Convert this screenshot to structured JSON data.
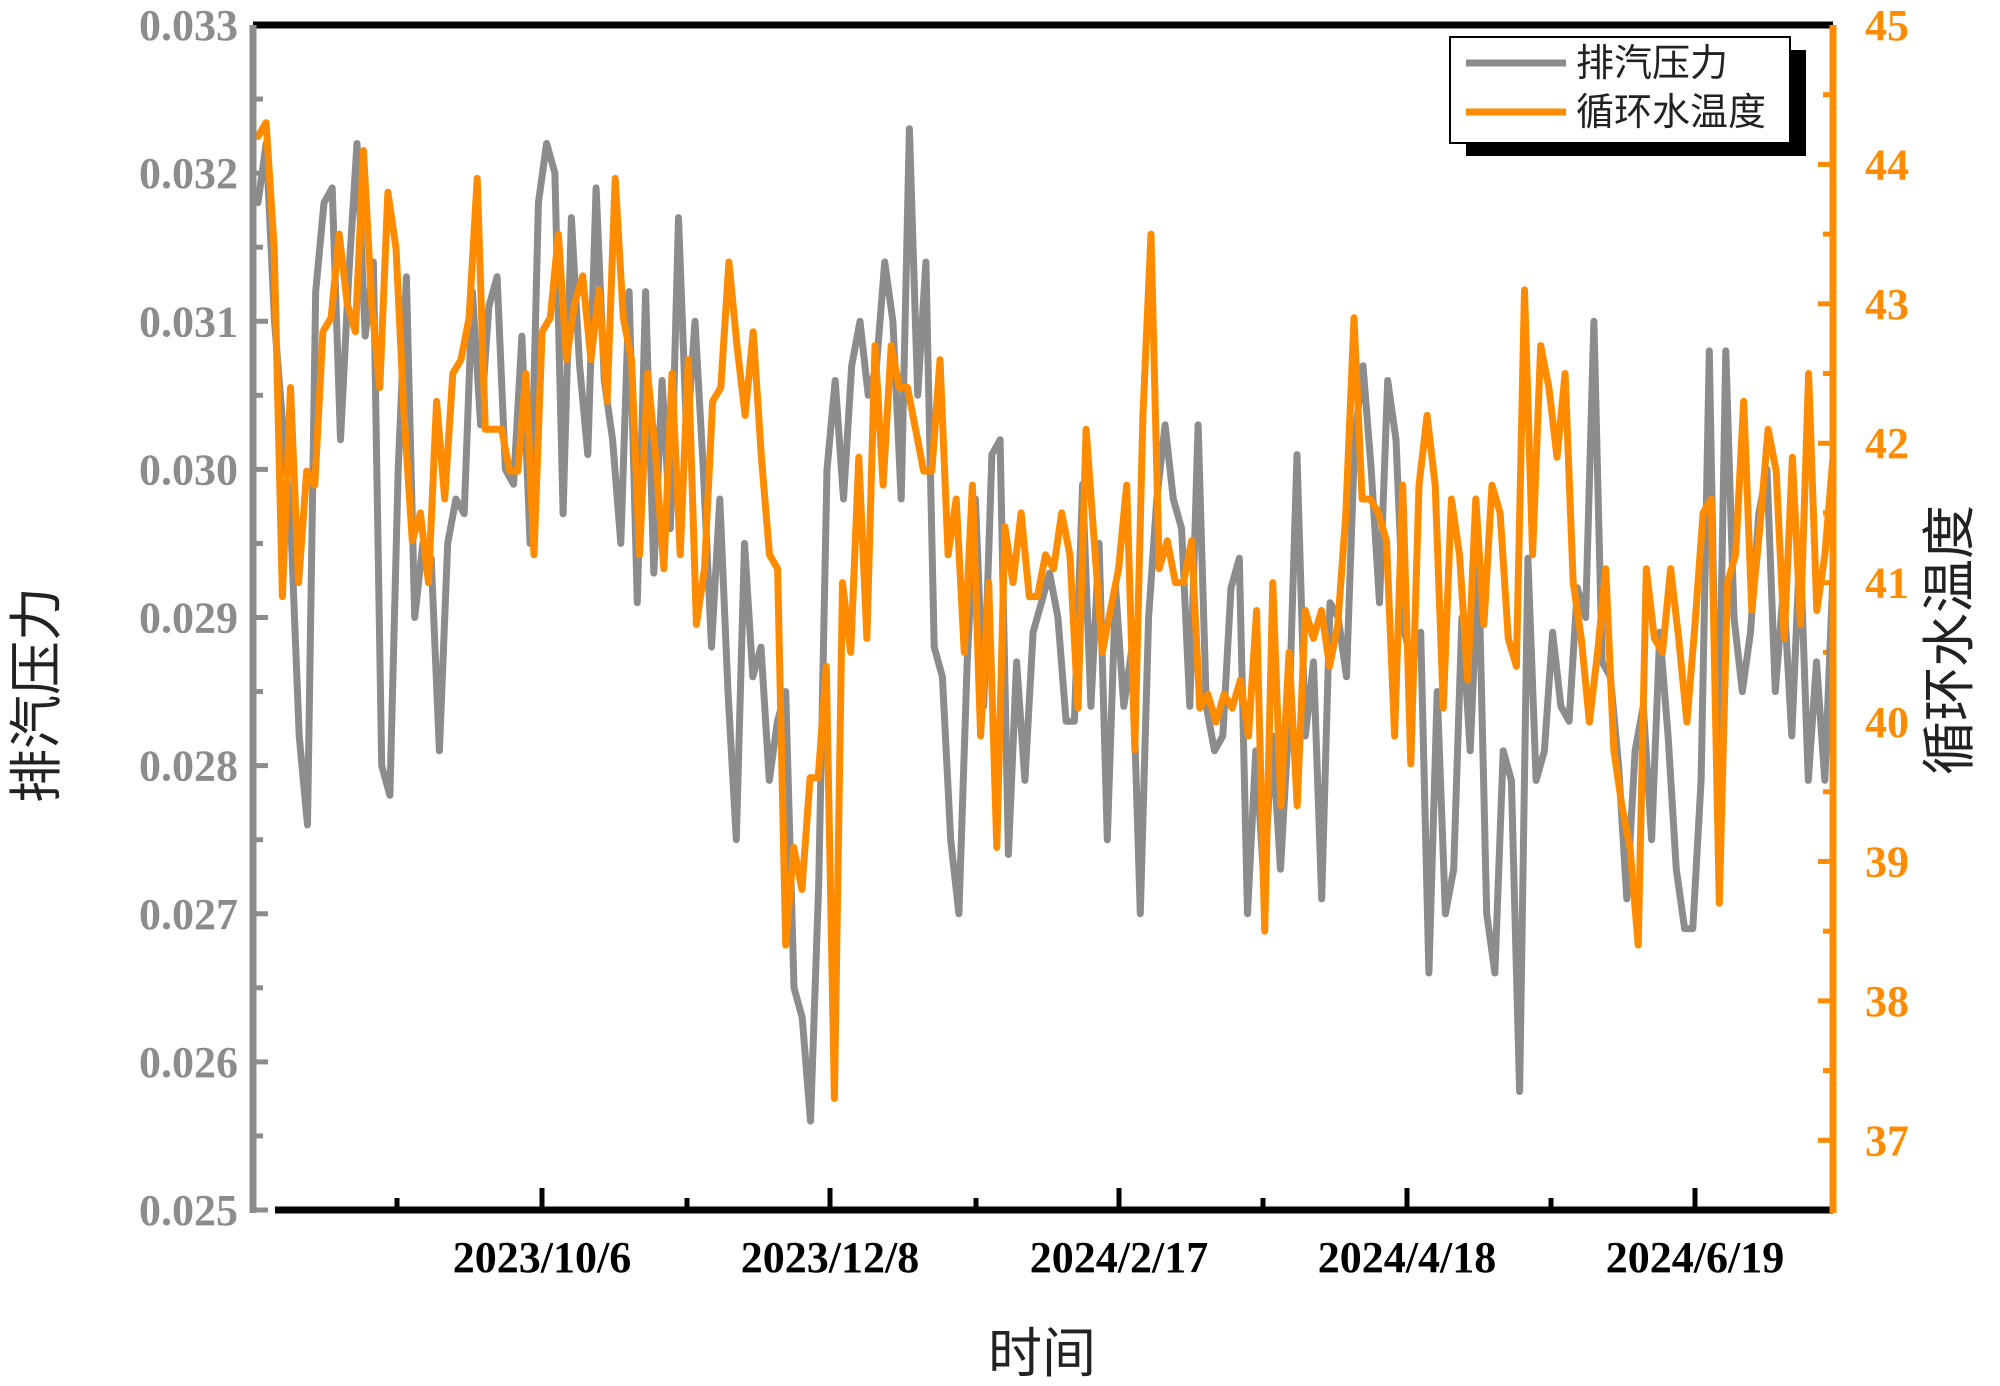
{
  "colors": {
    "pressure": "#8c8c8c",
    "temperature": "#ff8c00",
    "frame": "#000000",
    "background": "#ffffff"
  },
  "chart_data": {
    "type": "line",
    "title": "",
    "xlabel": "时间",
    "ylabel_left": "排汽压力",
    "ylabel_right": "循环水温度",
    "x_tick_labels": [
      "2023/10/6",
      "2023/12/8",
      "2024/2/17",
      "2024/4/18",
      "2024/6/19"
    ],
    "y_left_lim": [
      0.025,
      0.033
    ],
    "y_left_ticks": [
      "0.025",
      "0.026",
      "0.027",
      "0.028",
      "0.029",
      "0.030",
      "0.031",
      "0.032",
      "0.033"
    ],
    "y_right_lim": [
      36.5,
      45
    ],
    "y_right_ticks": [
      "37",
      "38",
      "39",
      "40",
      "41",
      "42",
      "43",
      "44",
      "45"
    ],
    "grid": false,
    "legend_position": "top-right",
    "series": [
      {
        "name": "排汽压力",
        "axis": "left",
        "values": [
          0.0318,
          0.0322,
          0.031,
          0.0303,
          0.0296,
          0.0282,
          0.0276,
          0.0312,
          0.0318,
          0.0319,
          0.0302,
          0.0313,
          0.0322,
          0.0309,
          0.0314,
          0.028,
          0.0278,
          0.03,
          0.0313,
          0.029,
          0.0295,
          0.0294,
          0.0281,
          0.0295,
          0.0298,
          0.0297,
          0.0312,
          0.0303,
          0.0311,
          0.0313,
          0.03,
          0.0299,
          0.0309,
          0.0295,
          0.0318,
          0.0322,
          0.032,
          0.0297,
          0.0317,
          0.0307,
          0.0301,
          0.0319,
          0.0306,
          0.0302,
          0.0295,
          0.0312,
          0.0291,
          0.0312,
          0.0293,
          0.0306,
          0.0296,
          0.0317,
          0.0302,
          0.031,
          0.03,
          0.0288,
          0.0298,
          0.0285,
          0.0275,
          0.0295,
          0.0286,
          0.0288,
          0.0279,
          0.0283,
          0.0285,
          0.0265,
          0.0263,
          0.0256,
          0.0272,
          0.03,
          0.0306,
          0.0298,
          0.0307,
          0.031,
          0.0305,
          0.0307,
          0.0314,
          0.031,
          0.0298,
          0.0323,
          0.0305,
          0.0314,
          0.0288,
          0.0286,
          0.0275,
          0.027,
          0.0287,
          0.0298,
          0.0284,
          0.0301,
          0.0302,
          0.0274,
          0.0287,
          0.0279,
          0.0289,
          0.0291,
          0.0293,
          0.029,
          0.0283,
          0.0283,
          0.0299,
          0.0284,
          0.0295,
          0.0275,
          0.0292,
          0.0284,
          0.0288,
          0.027,
          0.029,
          0.0298,
          0.0303,
          0.0298,
          0.0296,
          0.0284,
          0.0303,
          0.0284,
          0.0281,
          0.0282,
          0.0292,
          0.0294,
          0.027,
          0.0281,
          0.0272,
          0.0282,
          0.0273,
          0.0283,
          0.0301,
          0.0282,
          0.0287,
          0.0271,
          0.0291,
          0.029,
          0.0286,
          0.0302,
          0.0307,
          0.03,
          0.0291,
          0.0306,
          0.0302,
          0.0289,
          0.0287,
          0.0289,
          0.0266,
          0.0285,
          0.027,
          0.0273,
          0.029,
          0.0281,
          0.0294,
          0.027,
          0.0266,
          0.0281,
          0.0279,
          0.0258,
          0.0294,
          0.0279,
          0.0281,
          0.0289,
          0.0284,
          0.0283,
          0.0292,
          0.029,
          0.031,
          0.0287,
          0.0286,
          0.028,
          0.0271,
          0.0281,
          0.0284,
          0.0275,
          0.0289,
          0.0282,
          0.0273,
          0.0269,
          0.0269,
          0.0279,
          0.0308,
          0.0277,
          0.0308,
          0.029,
          0.0285,
          0.0289,
          0.0297,
          0.03,
          0.0285,
          0.0292,
          0.0282,
          0.0295,
          0.0279,
          0.0287,
          0.0279,
          0.0293
        ]
      },
      {
        "name": "循环水温度",
        "axis": "right",
        "values": [
          44.2,
          44.3,
          43.4,
          40.9,
          42.4,
          41.0,
          41.8,
          41.7,
          42.8,
          42.9,
          43.5,
          43.0,
          42.8,
          44.1,
          43.0,
          42.4,
          43.8,
          43.4,
          42.2,
          41.3,
          41.5,
          41.0,
          42.3,
          41.6,
          42.5,
          42.6,
          42.9,
          43.9,
          42.1,
          42.1,
          42.1,
          41.8,
          41.8,
          42.5,
          41.2,
          42.8,
          42.9,
          43.5,
          42.6,
          43.0,
          43.2,
          42.6,
          43.1,
          42.3,
          43.9,
          42.9,
          42.6,
          41.2,
          42.5,
          41.9,
          41.1,
          42.5,
          41.2,
          42.6,
          40.7,
          41.1,
          42.3,
          42.4,
          43.3,
          42.7,
          42.2,
          42.8,
          41.9,
          41.2,
          41.1,
          38.4,
          39.1,
          38.8,
          39.6,
          39.6,
          40.4,
          37.3,
          41.0,
          40.5,
          41.9,
          40.6,
          42.7,
          41.7,
          42.7,
          42.4,
          42.4,
          42.1,
          41.8,
          41.8,
          42.6,
          41.2,
          41.6,
          40.5,
          41.7,
          39.9,
          41.0,
          39.1,
          41.4,
          41.0,
          41.5,
          40.9,
          40.9,
          41.2,
          41.1,
          41.5,
          41.2,
          40.1,
          42.1,
          41.3,
          40.5,
          40.8,
          41.1,
          41.7,
          39.8,
          42.2,
          43.5,
          41.1,
          41.3,
          41.0,
          41.0,
          41.3,
          40.1,
          40.2,
          40.0,
          40.2,
          40.1,
          40.3,
          39.9,
          40.8,
          38.5,
          41.0,
          39.4,
          40.5,
          39.4,
          40.8,
          40.6,
          40.8,
          40.4,
          40.7,
          41.5,
          42.9,
          41.6,
          41.6,
          41.5,
          41.3,
          39.9,
          41.7,
          39.7,
          41.7,
          42.2,
          41.7,
          40.1,
          41.6,
          41.2,
          40.3,
          41.6,
          40.7,
          41.7,
          41.5,
          40.6,
          40.4,
          43.1,
          41.2,
          42.7,
          42.4,
          41.9,
          42.5,
          41.0,
          40.6,
          40.0,
          40.5,
          41.1,
          39.8,
          39.4,
          39.1,
          38.4,
          41.1,
          40.6,
          40.5,
          41.1,
          40.6,
          40.0,
          40.7,
          41.5,
          41.6,
          38.7,
          41.0,
          41.2,
          42.3,
          40.8,
          41.4,
          42.1,
          41.8,
          40.6,
          41.9,
          40.7,
          42.5,
          40.8,
          41.2,
          41.9
        ]
      }
    ]
  },
  "legend": {
    "items": [
      "排汽压力",
      "循环水温度"
    ]
  }
}
